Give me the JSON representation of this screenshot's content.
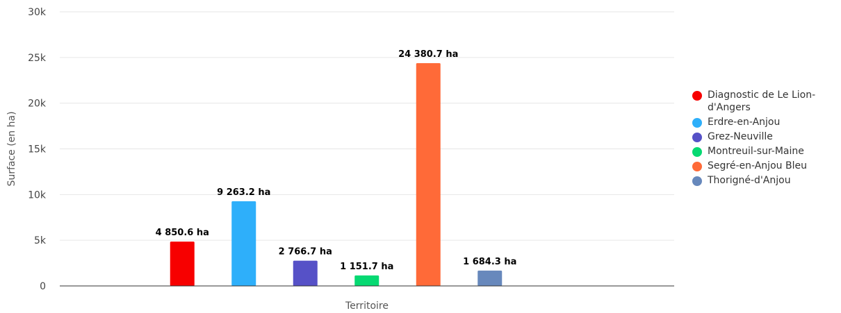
{
  "chart_data": {
    "type": "bar",
    "title": "",
    "xlabel": "Territoire",
    "ylabel": "Surface (en ha)",
    "ylim": [
      0,
      30000
    ],
    "yticks": [
      0,
      5000,
      10000,
      15000,
      20000,
      25000,
      30000
    ],
    "ytick_labels": [
      "0",
      "5k",
      "10k",
      "15k",
      "20k",
      "25k",
      "30k"
    ],
    "grid": true,
    "legend_position": "right",
    "series": [
      {
        "name": "Diagnostic de Le Lion-d'Angers",
        "value": 4850.6,
        "label": "4 850.6 ha",
        "color": "#f70000"
      },
      {
        "name": "Erdre-en-Anjou",
        "value": 9263.2,
        "label": "9 263.2 ha",
        "color": "#2eaffa"
      },
      {
        "name": "Grez-Neuville",
        "value": 2766.7,
        "label": "2 766.7 ha",
        "color": "#5651c7"
      },
      {
        "name": "Montreuil-sur-Maine",
        "value": 1151.7,
        "label": "1 151.7 ha",
        "color": "#06d972"
      },
      {
        "name": "Segré-en-Anjou Bleu",
        "value": 24380.7,
        "label": "24 380.7 ha",
        "color": "#ff6a38"
      },
      {
        "name": "Thorigné-d'Anjou",
        "value": 1684.3,
        "label": "1 684.3 ha",
        "color": "#6788bc"
      }
    ]
  }
}
